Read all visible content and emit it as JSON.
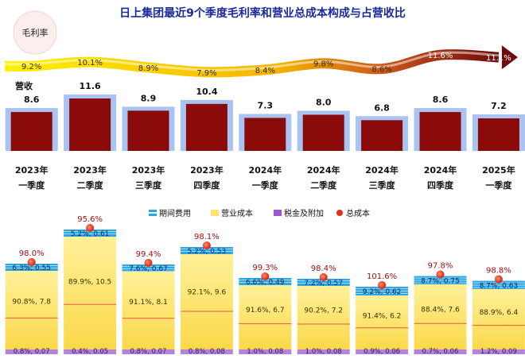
{
  "title": "日上集团最近9个季度毛利率和营业总成本构成与占营收比",
  "gm_label": "毛利率",
  "revenue_label": "营收",
  "legend": [
    "期间费用",
    "营业成本",
    "税金及附加",
    "总成本"
  ],
  "colors": {
    "revenue_bar": "#8b0a0a",
    "revenue_bg": "#a9c3f2",
    "period_expense": "#2aa7e0",
    "operating_cost": "#fde46a",
    "tax": "#9b59d0",
    "total_cost_dot": "#e0301e",
    "title": "#1a2a9c"
  },
  "chart_data": {
    "type": "bar",
    "categories": [
      [
        "2023年",
        "一季度"
      ],
      [
        "2023年",
        "二季度"
      ],
      [
        "2023年",
        "三季度"
      ],
      [
        "2023年",
        "四季度"
      ],
      [
        "2024年",
        "一季度"
      ],
      [
        "2024年",
        "二季度"
      ],
      [
        "2024年",
        "三季度"
      ],
      [
        "2024年",
        "四季度"
      ],
      [
        "2025年",
        "一季度"
      ]
    ],
    "gross_margin_labels": [
      "9.2%",
      "10.1%",
      "8.9%",
      "7.9%",
      "8.4%",
      "9.8%",
      "8.6%",
      "11.6%",
      "11.1%"
    ],
    "gross_margin": [
      9.2,
      10.1,
      8.9,
      7.9,
      8.4,
      9.8,
      8.6,
      11.6,
      11.1
    ],
    "revenue": [
      8.6,
      11.6,
      8.9,
      10.4,
      7.3,
      8.0,
      6.8,
      8.6,
      7.2
    ],
    "revenue_labels": [
      "8.6",
      "11.6",
      "8.9",
      "10.4",
      "7.3",
      "8.0",
      "6.8",
      "8.6",
      "7.2"
    ],
    "total_cost_ratio_labels": [
      "98.0%",
      "95.6%",
      "99.4%",
      "98.1%",
      "99.3%",
      "98.4%",
      "101.6%",
      "97.8%",
      "98.8%"
    ],
    "total_cost_ratio": [
      98.0,
      95.6,
      99.4,
      98.1,
      99.3,
      98.4,
      101.6,
      97.8,
      98.8
    ],
    "period_expense_labels": [
      "6.3%, 0.55",
      "5.2%, 0.61",
      "7.6%, 0.67",
      "5.2%, 0.53",
      "6.6%, 0.49",
      "7.2%, 0.57",
      "9.2%, 0.62",
      "8.7%, 0.75",
      "8.7%, 0.63"
    ],
    "period_expense_pct": [
      6.3,
      5.2,
      7.6,
      5.2,
      6.6,
      7.2,
      9.2,
      8.7,
      8.7
    ],
    "operating_cost_labels": [
      "90.8%, 7.8",
      "89.9%, 10.5",
      "91.1%, 8.1",
      "92.1%, 9.6",
      "91.6%, 6.7",
      "90.2%, 7.2",
      "91.4%, 6.2",
      "88.4%, 7.6",
      "88.9%, 6.4"
    ],
    "operating_cost_pct": [
      90.8,
      89.9,
      91.1,
      92.1,
      91.6,
      90.2,
      91.4,
      88.4,
      88.9
    ],
    "tax_labels": [
      "0.8%, 0.07",
      "0.4%, 0.05",
      "0.8%, 0.07",
      "0.8%, 0.08",
      "1.0%, 0.08",
      "1.0%, 0.08",
      "0.9%, 0.06",
      "0.7%, 0.06",
      "1.2%, 0.09"
    ],
    "tax_pct": [
      0.8,
      0.4,
      0.8,
      0.8,
      1.0,
      1.0,
      0.9,
      0.7,
      1.2
    ]
  }
}
